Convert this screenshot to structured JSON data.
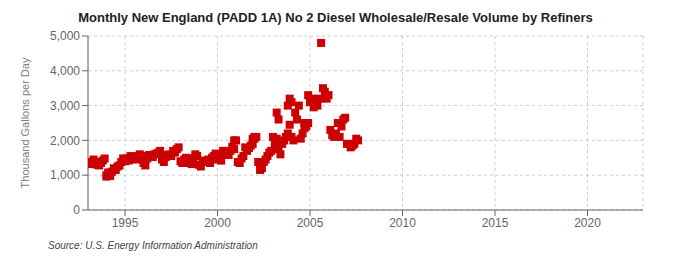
{
  "chart_data": {
    "type": "scatter",
    "title": "Monthly New England (PADD 1A) No 2 Diesel Wholesale/Resale Volume by Refiners",
    "ylabel": "Thousand Gallons per Day",
    "annotations": [
      "Source: U.S. Energy Information Administration"
    ],
    "color": "#cc0000",
    "marker": "square",
    "grid": true,
    "xlim": [
      1993.0,
      2023.0
    ],
    "ylim": [
      0,
      5000
    ],
    "xticks": [
      1995,
      2000,
      2005,
      2010,
      2015,
      2020
    ],
    "yticks": [
      0,
      {
        "value": 1000,
        "label": "1,000"
      },
      {
        "value": 2000,
        "label": "2,000"
      },
      {
        "value": 3000,
        "label": "3,000"
      },
      {
        "value": 4000,
        "label": "4,000"
      },
      {
        "value": 5000,
        "label": "5,000"
      }
    ],
    "x": [
      1993.1,
      1993.2,
      1993.3,
      1993.4,
      1993.5,
      1993.6,
      1993.7,
      1993.8,
      1993.9,
      1994.0,
      1994.1,
      1994.2,
      1994.3,
      1994.4,
      1994.5,
      1994.6,
      1994.7,
      1994.8,
      1994.9,
      1995.0,
      1995.1,
      1995.2,
      1995.3,
      1995.4,
      1995.5,
      1995.6,
      1995.7,
      1995.8,
      1995.9,
      1996.0,
      1996.1,
      1996.2,
      1996.3,
      1996.4,
      1996.5,
      1996.6,
      1996.7,
      1996.8,
      1996.9,
      1997.0,
      1997.1,
      1997.2,
      1997.3,
      1997.4,
      1997.5,
      1997.6,
      1997.7,
      1997.8,
      1997.9,
      1998.0,
      1998.1,
      1998.2,
      1998.3,
      1998.4,
      1998.5,
      1998.6,
      1998.7,
      1998.8,
      1998.9,
      1999.0,
      1999.1,
      1999.2,
      1999.3,
      1999.4,
      1999.5,
      1999.6,
      1999.7,
      1999.8,
      1999.9,
      2000.0,
      2000.1,
      2000.2,
      2000.3,
      2000.4,
      2000.5,
      2000.6,
      2000.7,
      2000.8,
      2000.9,
      2001.0,
      2001.1,
      2001.2,
      2001.3,
      2001.4,
      2001.5,
      2001.6,
      2001.7,
      2001.8,
      2001.9,
      2002.0,
      2002.1,
      2002.2,
      2002.3,
      2002.4,
      2002.5,
      2002.6,
      2002.7,
      2002.8,
      2002.9,
      2003.0,
      2003.1,
      2003.2,
      2003.3,
      2003.4,
      2003.5,
      2003.6,
      2003.7,
      2003.8,
      2003.9,
      2004.0,
      2004.1,
      2004.2,
      2004.3,
      2004.4,
      2004.5,
      2004.6,
      2004.7,
      2004.8,
      2004.9,
      2005.0,
      2005.1,
      2005.2,
      2005.3,
      2005.4,
      2005.5,
      2005.6,
      2005.7,
      2005.8,
      2005.9,
      2006.0,
      2006.1,
      2006.2,
      2006.3,
      2006.4,
      2006.5,
      2006.6,
      2006.7,
      2006.8,
      2006.9,
      2007.0,
      2007.1,
      2007.2,
      2007.3,
      2007.4,
      2007.5,
      2007.6,
      2004.0,
      2004.9,
      2005.0,
      2004.7,
      2003.9,
      2003.8,
      2003.3,
      2003.2,
      2000.9,
      2001.9,
      2002.0,
      1994.0,
      1994.1
    ],
    "values": [
      1380,
      1320,
      1450,
      1380,
      1300,
      1280,
      1350,
      1420,
      1480,
      960,
      1050,
      980,
      1100,
      1200,
      1150,
      1250,
      1280,
      1380,
      1480,
      1400,
      1480,
      1420,
      1550,
      1500,
      1480,
      1450,
      1550,
      1600,
      1550,
      1350,
      1280,
      1480,
      1580,
      1550,
      1520,
      1600,
      1620,
      1650,
      1700,
      1450,
      1380,
      1520,
      1580,
      1600,
      1550,
      1700,
      1650,
      1750,
      1800,
      1400,
      1350,
      1450,
      1500,
      1350,
      1480,
      1320,
      1480,
      1600,
      1550,
      1300,
      1250,
      1380,
      1420,
      1380,
      1450,
      1350,
      1500,
      1550,
      1620,
      1450,
      1500,
      1420,
      1700,
      1600,
      1650,
      1580,
      1700,
      1820,
      1750,
      2000,
      1380,
      1350,
      1480,
      1550,
      1800,
      1700,
      1780,
      1850,
      1900,
      2050,
      2100,
      1380,
      1150,
      1200,
      1380,
      1450,
      1550,
      1650,
      1700,
      2100,
      1900,
      2050,
      1750,
      1600,
      1900,
      2000,
      2100,
      2200,
      2450,
      2100,
      2000,
      2800,
      2600,
      3000,
      2050,
      2200,
      2350,
      2400,
      2500,
      3100,
      3200,
      2950,
      3050,
      3000,
      3200,
      4800,
      3500,
      3400,
      3200,
      3300,
      2300,
      2150,
      2100,
      2200,
      2500,
      2100,
      2400,
      2600,
      2650,
      1900,
      1900,
      1800,
      1850,
      1900,
      2050,
      2000,
      3100,
      3300,
      3150,
      2500,
      3200,
      3000,
      2600,
      2800,
      2000,
      2050,
      2100,
      1000,
      1080
    ]
  }
}
